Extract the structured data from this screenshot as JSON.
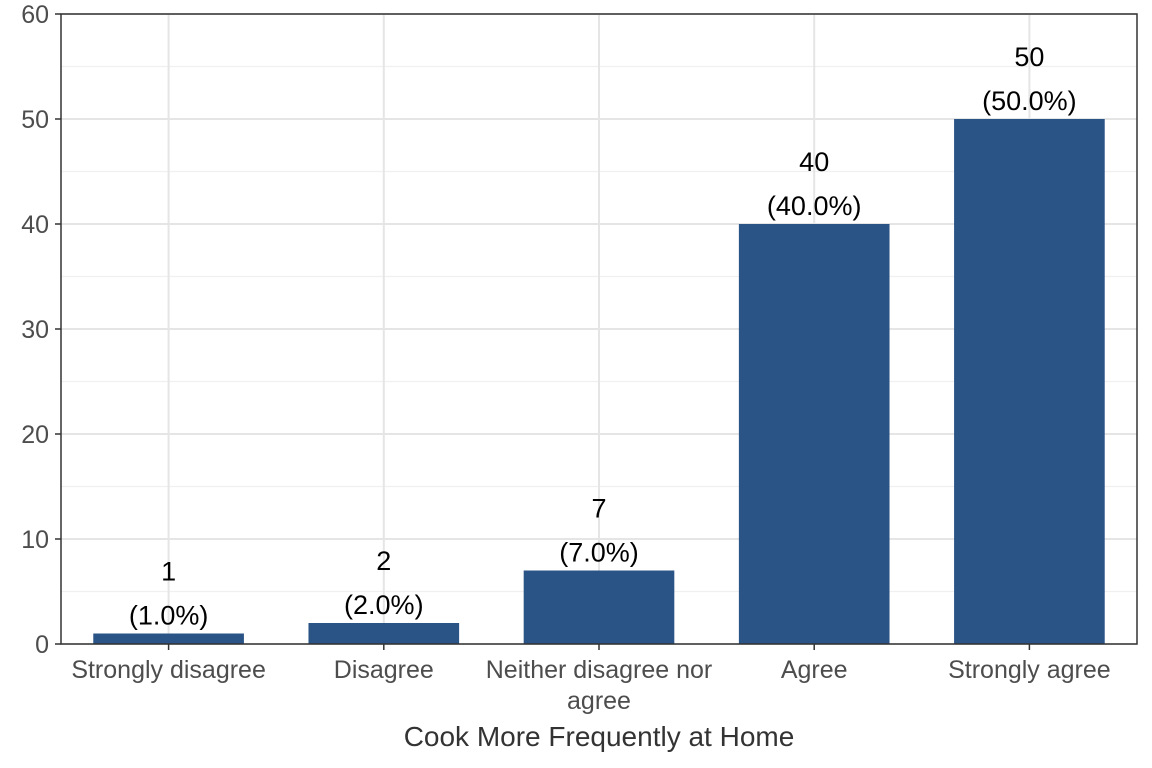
{
  "chart_data": {
    "type": "bar",
    "categories": [
      "Strongly disagree",
      "Disagree",
      "Neither disagree nor agree",
      "Agree",
      "Strongly agree"
    ],
    "category_label_lines": [
      [
        "Strongly disagree"
      ],
      [
        "Disagree"
      ],
      [
        "Neither disagree nor",
        "agree"
      ],
      [
        "Agree"
      ],
      [
        "Strongly agree"
      ]
    ],
    "values": [
      1,
      2,
      7,
      40,
      50
    ],
    "count_labels": [
      "1",
      "2",
      "7",
      "40",
      "50"
    ],
    "percent_labels": [
      "(1.0%)",
      "(2.0%)",
      "(7.0%)",
      "(40.0%)",
      "(50.0%)"
    ],
    "title": "",
    "xlabel": "Cook More Frequently at Home",
    "ylabel": "",
    "ylim": [
      0,
      60
    ],
    "yticks": [
      0,
      10,
      20,
      30,
      40,
      50,
      60
    ],
    "grid": true,
    "legend": "none",
    "bar_color": "#2a5386"
  }
}
